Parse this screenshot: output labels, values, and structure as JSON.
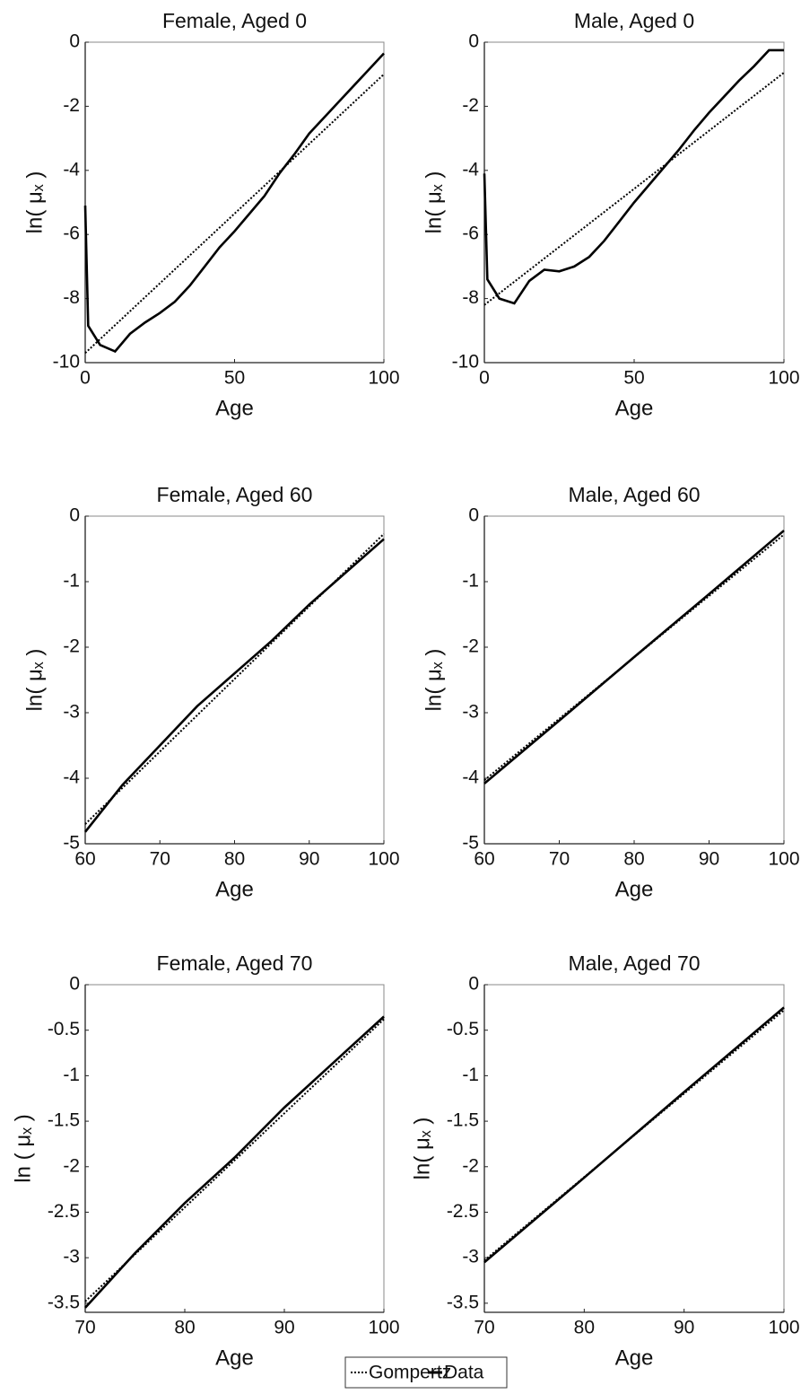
{
  "chart_data": [
    {
      "type": "line",
      "title": "Female, Aged 0",
      "xlabel": "Age",
      "ylabel": "ln( μₓ )",
      "xlim": [
        0,
        100
      ],
      "xticks": [
        0,
        50,
        100
      ],
      "ylim": [
        -10,
        0
      ],
      "yticks": [
        -10,
        -8,
        -6,
        -4,
        -2,
        0
      ],
      "series": [
        {
          "name": "Gompertz",
          "color": "#000000",
          "dash": "dotted",
          "x": [
            0,
            100
          ],
          "values": [
            -9.7,
            -1.0
          ]
        },
        {
          "name": "Data",
          "color": "#000000",
          "dash": "solid",
          "x": [
            0,
            1,
            5,
            10,
            15,
            20,
            25,
            30,
            35,
            40,
            45,
            50,
            55,
            60,
            65,
            70,
            75,
            80,
            85,
            90,
            95,
            100
          ],
          "values": [
            -5.1,
            -8.85,
            -9.45,
            -9.65,
            -9.1,
            -8.75,
            -8.45,
            -8.1,
            -7.6,
            -7.0,
            -6.4,
            -5.9,
            -5.35,
            -4.8,
            -4.1,
            -3.5,
            -2.85,
            -2.35,
            -1.85,
            -1.35,
            -0.85,
            -0.35
          ]
        }
      ]
    },
    {
      "type": "line",
      "title": "Male, Aged 0",
      "xlabel": "Age",
      "ylabel": "ln( μₓ )",
      "xlim": [
        0,
        100
      ],
      "xticks": [
        0,
        50,
        100
      ],
      "ylim": [
        -10,
        0
      ],
      "yticks": [
        -10,
        -8,
        -6,
        -4,
        -2,
        0
      ],
      "series": [
        {
          "name": "Gompertz",
          "color": "#000000",
          "dash": "dotted",
          "x": [
            0,
            100
          ],
          "values": [
            -8.2,
            -0.95
          ]
        },
        {
          "name": "Data",
          "color": "#000000",
          "dash": "solid",
          "x": [
            0,
            1,
            5,
            10,
            15,
            20,
            25,
            30,
            35,
            40,
            45,
            50,
            55,
            60,
            65,
            70,
            75,
            80,
            85,
            90,
            95,
            100
          ],
          "values": [
            -4.1,
            -7.4,
            -8.0,
            -8.15,
            -7.45,
            -7.1,
            -7.15,
            -7.0,
            -6.7,
            -6.2,
            -5.6,
            -5.0,
            -4.45,
            -3.9,
            -3.35,
            -2.75,
            -2.2,
            -1.7,
            -1.2,
            -0.75,
            -0.25,
            -0.25
          ]
        }
      ]
    },
    {
      "type": "line",
      "title": "Female, Aged 60",
      "xlabel": "Age",
      "ylabel": "ln( μₓ )",
      "xlim": [
        60,
        100
      ],
      "xticks": [
        60,
        70,
        80,
        90,
        100
      ],
      "ylim": [
        -5,
        0
      ],
      "yticks": [
        -5,
        -4,
        -3,
        -2,
        -1,
        0
      ],
      "series": [
        {
          "name": "Gompertz",
          "color": "#000000",
          "dash": "dotted",
          "x": [
            60,
            100
          ],
          "values": [
            -4.7,
            -0.27
          ]
        },
        {
          "name": "Data",
          "color": "#000000",
          "dash": "solid",
          "x": [
            60,
            65,
            70,
            75,
            80,
            85,
            90,
            95,
            100
          ],
          "values": [
            -4.82,
            -4.1,
            -3.5,
            -2.9,
            -2.4,
            -1.9,
            -1.35,
            -0.85,
            -0.35
          ]
        }
      ]
    },
    {
      "type": "line",
      "title": "Male, Aged 60",
      "xlabel": "Age",
      "ylabel": "ln( μₓ )",
      "xlim": [
        60,
        100
      ],
      "xticks": [
        60,
        70,
        80,
        90,
        100
      ],
      "ylim": [
        -5,
        0
      ],
      "yticks": [
        -5,
        -4,
        -3,
        -2,
        -1,
        0
      ],
      "series": [
        {
          "name": "Gompertz",
          "color": "#000000",
          "dash": "dotted",
          "x": [
            60,
            100
          ],
          "values": [
            -4.03,
            -0.28
          ]
        },
        {
          "name": "Data",
          "color": "#000000",
          "dash": "solid",
          "x": [
            60,
            70,
            80,
            90,
            100
          ],
          "values": [
            -4.08,
            -3.12,
            -2.15,
            -1.19,
            -0.22
          ]
        }
      ]
    },
    {
      "type": "line",
      "title": "Female, Aged 70",
      "xlabel": "Age",
      "ylabel": "ln ( μₓ )",
      "xlim": [
        70,
        100
      ],
      "xticks": [
        70,
        80,
        90,
        100
      ],
      "ylim": [
        -3.6,
        0
      ],
      "yticks": [
        -3.5,
        -3,
        -2.5,
        -2,
        -1.5,
        -1,
        -0.5,
        0
      ],
      "series": [
        {
          "name": "Gompertz",
          "color": "#000000",
          "dash": "dotted",
          "x": [
            70,
            100
          ],
          "values": [
            -3.48,
            -0.38
          ]
        },
        {
          "name": "Data",
          "color": "#000000",
          "dash": "solid",
          "x": [
            70,
            75,
            80,
            85,
            90,
            95,
            100
          ],
          "values": [
            -3.55,
            -2.95,
            -2.4,
            -1.9,
            -1.35,
            -0.85,
            -0.35
          ]
        }
      ]
    },
    {
      "type": "line",
      "title": "Male, Aged 70",
      "xlabel": "Age",
      "ylabel": "ln( μₓ )",
      "xlim": [
        70,
        100
      ],
      "xticks": [
        70,
        80,
        90,
        100
      ],
      "ylim": [
        -3.6,
        0
      ],
      "yticks": [
        -3.5,
        -3,
        -2.5,
        -2,
        -1.5,
        -1,
        -0.5,
        0
      ],
      "series": [
        {
          "name": "Gompertz",
          "color": "#000000",
          "dash": "dotted",
          "x": [
            70,
            100
          ],
          "values": [
            -3.03,
            -0.28
          ]
        },
        {
          "name": "Data",
          "color": "#000000",
          "dash": "solid",
          "x": [
            70,
            80,
            90,
            100
          ],
          "values": [
            -3.05,
            -2.12,
            -1.18,
            -0.25
          ]
        }
      ]
    }
  ]
}
